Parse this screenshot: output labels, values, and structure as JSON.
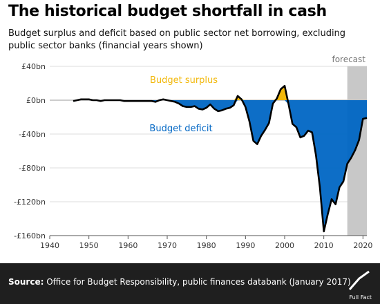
{
  "title": "The historical budget shortfall in cash",
  "subtitle": "Budget surplus and deficit based on public sector net borrowing, excluding public sector banks (financial years shown)",
  "footer": {
    "source_label": "Source:",
    "source_text": "Office for Budget Responsibility, public finances databank (January 2017)",
    "logo_text": "Full Fact"
  },
  "colors": {
    "surplus": "#f2b80a",
    "deficit": "#0066c4",
    "line": "#000000",
    "forecast_band": "#c8c8c8",
    "footer_bg": "#1f1f1f"
  },
  "chart_data": {
    "type": "area",
    "xlim": [
      1940,
      2021
    ],
    "ylim": [
      -160,
      40
    ],
    "x_ticks": [
      1940,
      1950,
      1960,
      1970,
      1980,
      1990,
      2000,
      2010,
      2020
    ],
    "y_ticks": [
      40,
      0,
      -40,
      -80,
      -120,
      -160
    ],
    "y_tick_labels": [
      "£40bn",
      "£0bn",
      "-£40bn",
      "-£80bn",
      "-£120bn",
      "-£160bn"
    ],
    "grid": "horizontal",
    "annotations": {
      "surplus_label": "Budget surplus",
      "deficit_label": "Budget deficit",
      "forecast_label": "forecast"
    },
    "forecast_range": [
      2016,
      2021
    ],
    "series": [
      {
        "x": [
          1946,
          1947,
          1948,
          1949,
          1950,
          1951,
          1952,
          1953,
          1954,
          1955,
          1956,
          1957,
          1958,
          1959,
          1960,
          1961,
          1962,
          1963,
          1964,
          1965,
          1966,
          1967,
          1968,
          1969,
          1970,
          1971,
          1972,
          1973,
          1974,
          1975,
          1976,
          1977,
          1978,
          1979,
          1980,
          1981,
          1982,
          1983,
          1984,
          1985,
          1986,
          1987,
          1988,
          1989,
          1990,
          1991,
          1992,
          1993,
          1994,
          1995,
          1996,
          1997,
          1998,
          1999,
          2000,
          2001,
          2002,
          2003,
          2004,
          2005,
          2006,
          2007,
          2008,
          2009,
          2010,
          2011,
          2012,
          2013,
          2014,
          2015,
          2016,
          2017,
          2018,
          2019,
          2020,
          2021
        ],
        "values": [
          -1,
          0,
          1,
          1,
          1,
          0,
          0,
          -1,
          0,
          0,
          0,
          0,
          0,
          -1,
          -1,
          -1,
          -1,
          -1,
          -1,
          -1,
          -1,
          -2,
          0,
          1,
          0,
          -1,
          -2,
          -4,
          -7,
          -8,
          -8,
          -7,
          -10,
          -11,
          -9,
          -5,
          -10,
          -13,
          -12,
          -10,
          -9,
          -6,
          5,
          1,
          -8,
          -25,
          -48,
          -52,
          -42,
          -35,
          -27,
          -4,
          2,
          13,
          17,
          -5,
          -28,
          -32,
          -44,
          -42,
          -36,
          -38,
          -65,
          -103,
          -155,
          -135,
          -117,
          -123,
          -103,
          -96,
          -75,
          -68,
          -59,
          -47,
          -22,
          -21
        ]
      }
    ]
  }
}
